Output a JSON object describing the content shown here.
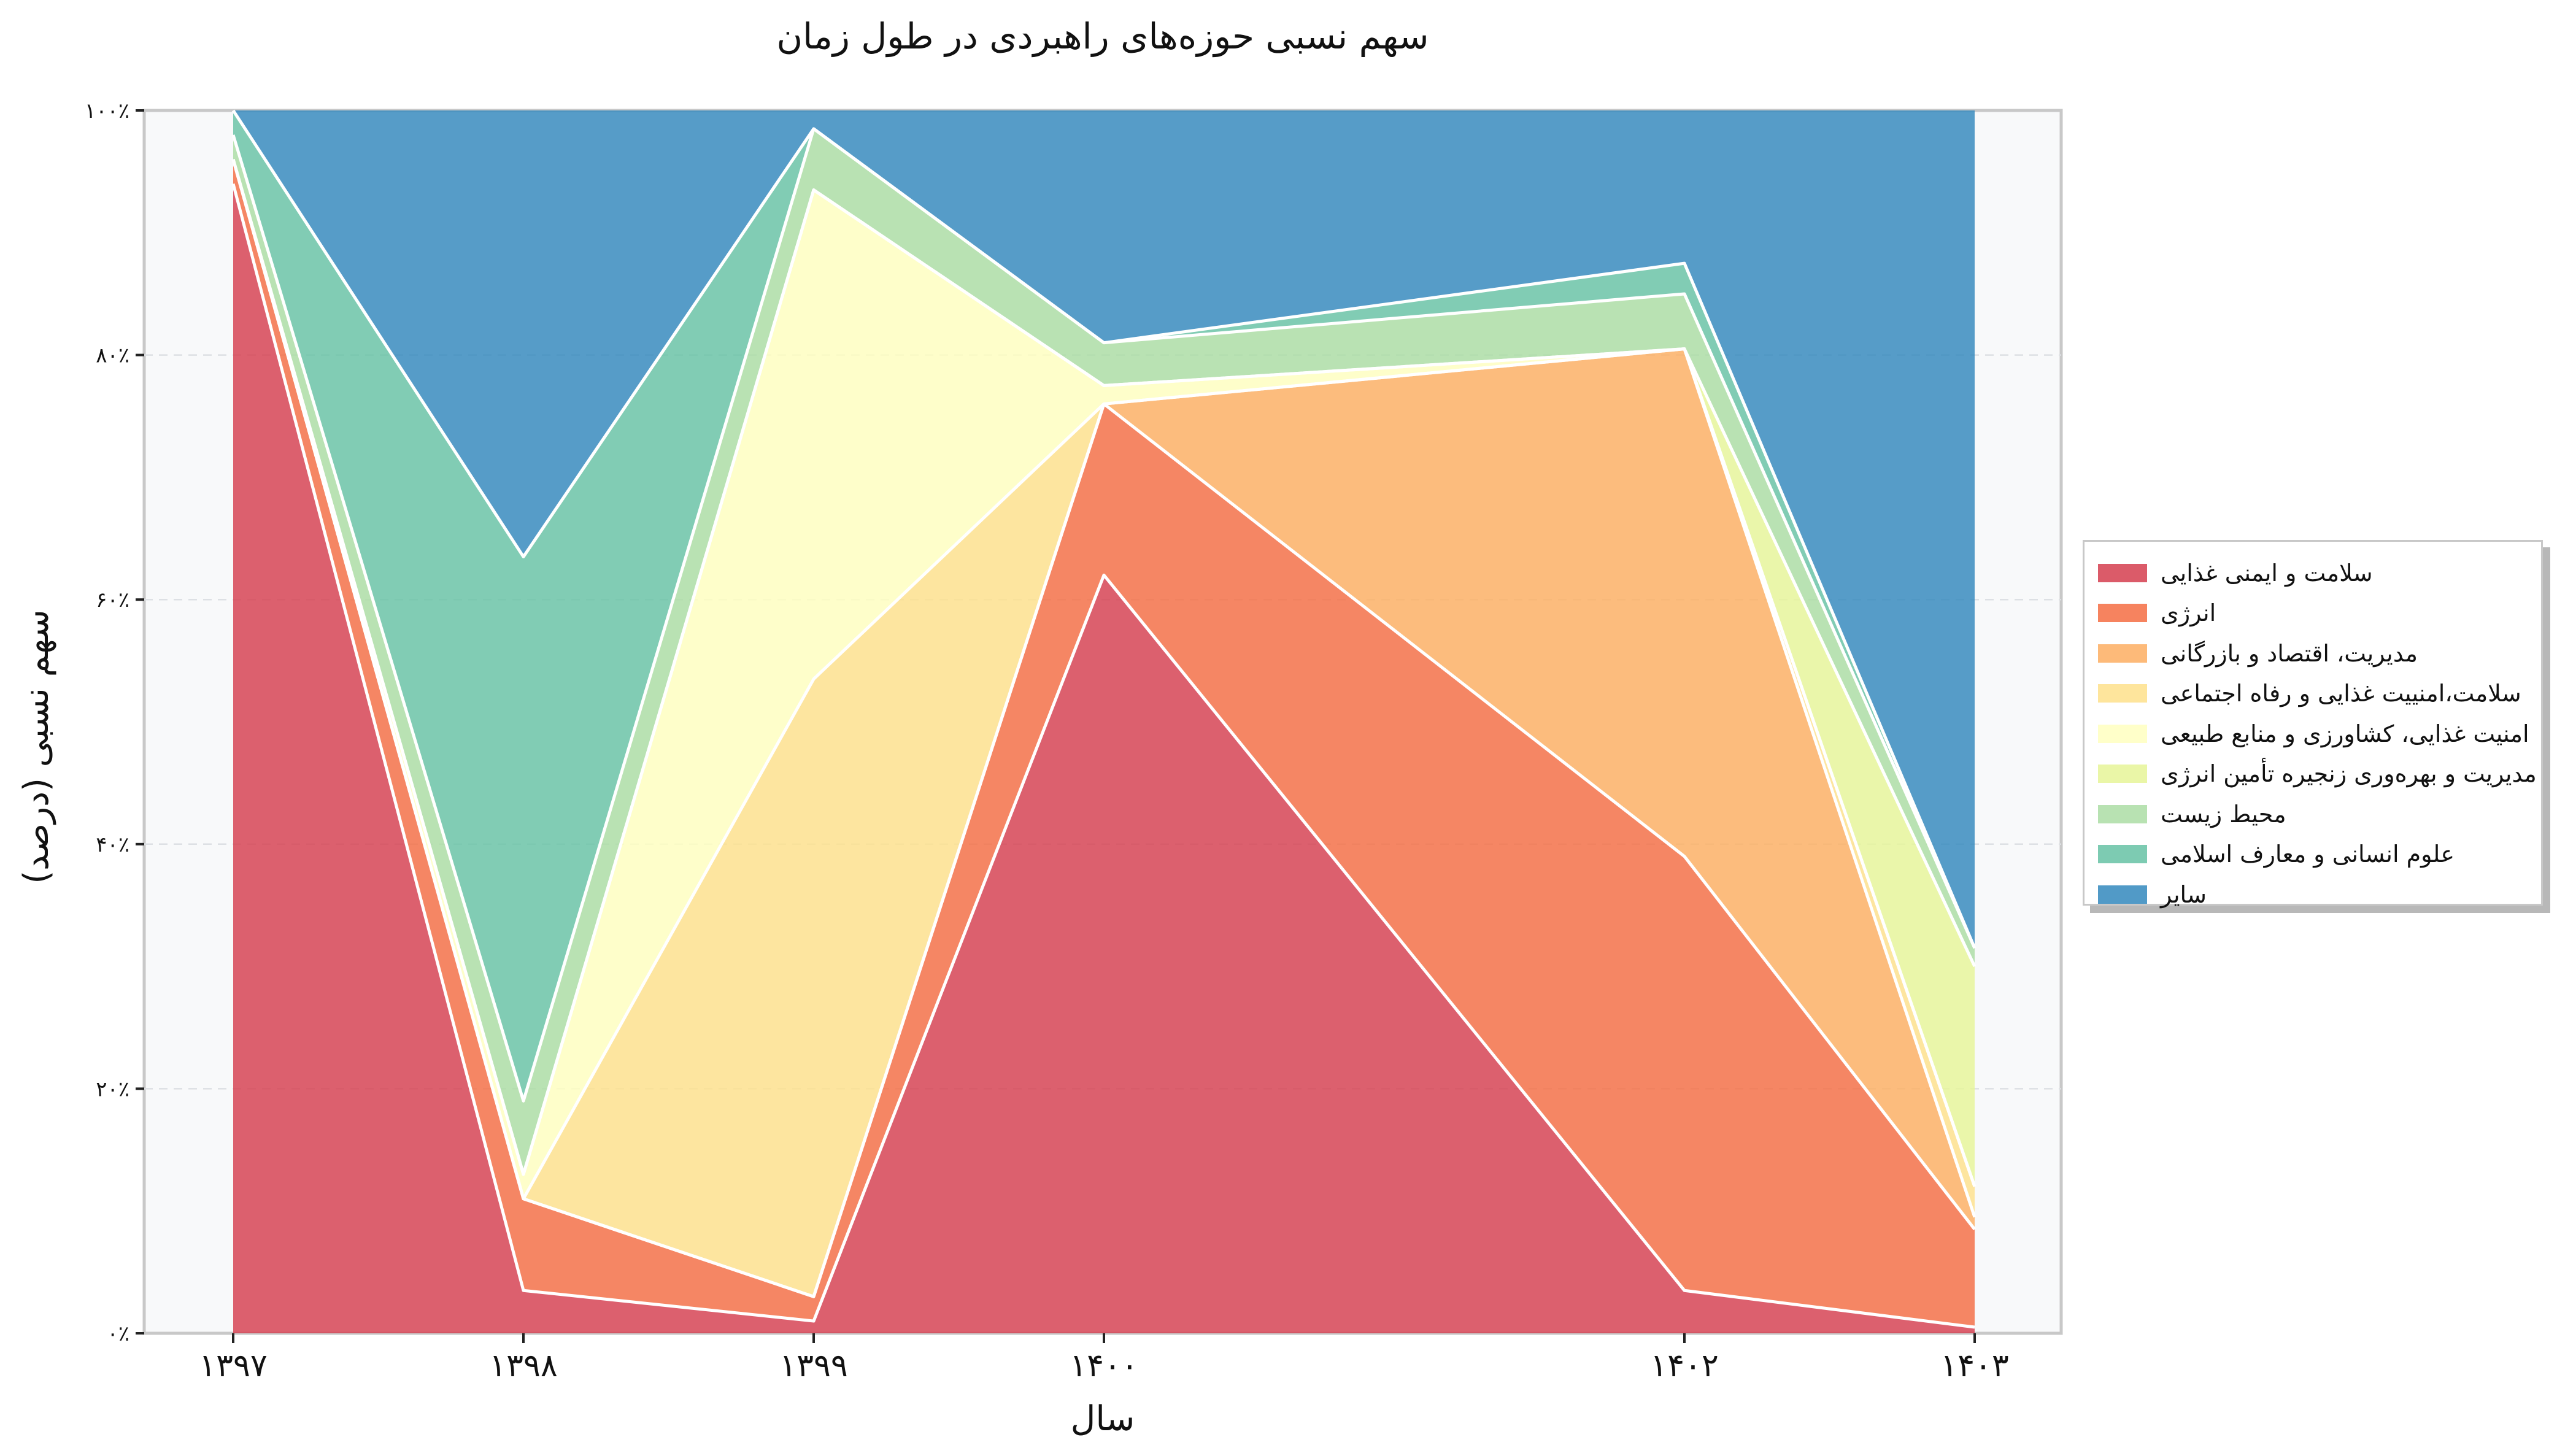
{
  "chart_data": {
    "type": "area",
    "stacked": true,
    "normalized": true,
    "title": "سهم نسبی حوزه‌های راهبردی در طول زمان",
    "xlabel": "سال",
    "ylabel": "سهم نسبی (درصد)",
    "x": [
      1397,
      1398,
      1399,
      1400,
      1402,
      1403
    ],
    "x_tick_labels": [
      "۱۳۹۷",
      "۱۳۹۸",
      "۱۳۹۹",
      "۱۴۰۰",
      "۱۴۰۲",
      "۱۴۰۳"
    ],
    "y_ticks": [
      0,
      20,
      40,
      60,
      80,
      100
    ],
    "y_tick_labels": [
      "۰٪",
      "۲۰٪",
      "۴۰٪",
      "۶۰٪",
      "۸۰٪",
      "۱۰۰٪"
    ],
    "ylim": [
      0,
      100
    ],
    "grid": "horizontal dashed",
    "legend_position": "right",
    "series": [
      {
        "name": "سلامت و ایمنی غذایی",
        "color": "#d53e4f",
        "values": [
          94,
          3.5,
          1,
          62,
          3.5,
          0.5
        ]
      },
      {
        "name": "انرژی",
        "color": "#f46d43",
        "values": [
          2,
          7.5,
          2,
          14,
          35.5,
          8
        ]
      },
      {
        "name": "مدیریت، اقتصاد و بازرگانی",
        "color": "#fdae61",
        "values": [
          0,
          0,
          0,
          0,
          41.5,
          1
        ]
      },
      {
        "name": "سلامت،امنییت غذایی و رفاه اجتماعی",
        "color": "#fee08b",
        "values": [
          0,
          0,
          50.5,
          0,
          0,
          2.5
        ]
      },
      {
        "name": "امنیت غذایی، کشاورزی و منابع طبیعی",
        "color": "#ffffbf",
        "values": [
          0,
          2,
          40,
          1.5,
          0,
          0
        ]
      },
      {
        "name": "مدیریت و بهره‌وری زنجیره تأمین انرژی",
        "color": "#e6f598",
        "values": [
          0,
          0,
          0,
          0,
          0,
          18
        ]
      },
      {
        "name": "محیط زیست",
        "color": "#abdda4",
        "values": [
          2,
          6,
          5,
          3.5,
          4.5,
          1.5
        ]
      },
      {
        "name": "علوم انسانی و معارف اسلامی",
        "color": "#66c2a5",
        "values": [
          2,
          44.5,
          0,
          0,
          2.5,
          0
        ]
      },
      {
        "name": "سایر",
        "color": "#3288bd",
        "values": [
          0,
          36.5,
          1.5,
          19,
          12.5,
          68.5
        ]
      }
    ]
  }
}
